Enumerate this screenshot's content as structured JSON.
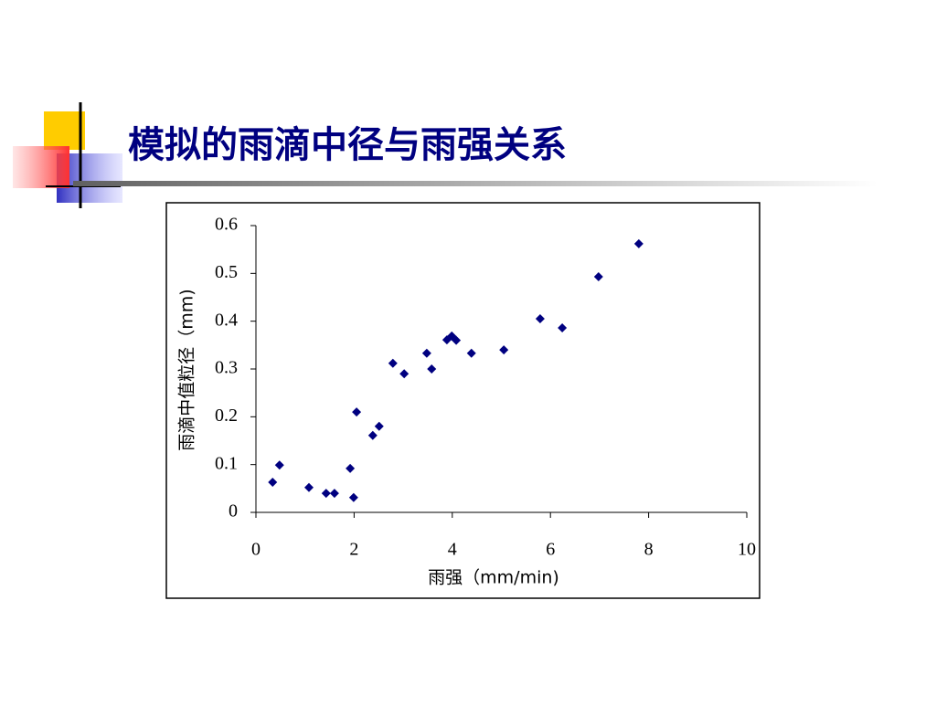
{
  "chart_data": {
    "type": "scatter",
    "title": "模拟的雨滴中径与雨强关系",
    "x_label": "雨强（mm/min)",
    "y_label": "雨滴中值粒径（mm)",
    "color": "#000080",
    "x": [
      0.34,
      0.48,
      1.08,
      1.43,
      1.6,
      1.92,
      1.99,
      2.05,
      2.38,
      2.51,
      2.79,
      3.02,
      3.48,
      3.58,
      3.89,
      3.99,
      4.08,
      4.39,
      5.05,
      5.79,
      6.24,
      6.98,
      7.8
    ],
    "values": [
      0.063,
      0.099,
      0.052,
      0.04,
      0.04,
      0.092,
      0.031,
      0.21,
      0.161,
      0.18,
      0.312,
      0.29,
      0.333,
      0.3,
      0.361,
      0.369,
      0.36,
      0.333,
      0.34,
      0.405,
      0.386,
      0.493,
      0.562
    ],
    "xlim": [
      0,
      10
    ],
    "xticks": [
      0,
      2,
      4,
      6,
      8,
      10
    ],
    "ylim": [
      0,
      0.6
    ],
    "yticks": [
      0,
      0.1,
      0.2,
      0.3,
      0.4,
      0.5,
      0.6
    ]
  }
}
